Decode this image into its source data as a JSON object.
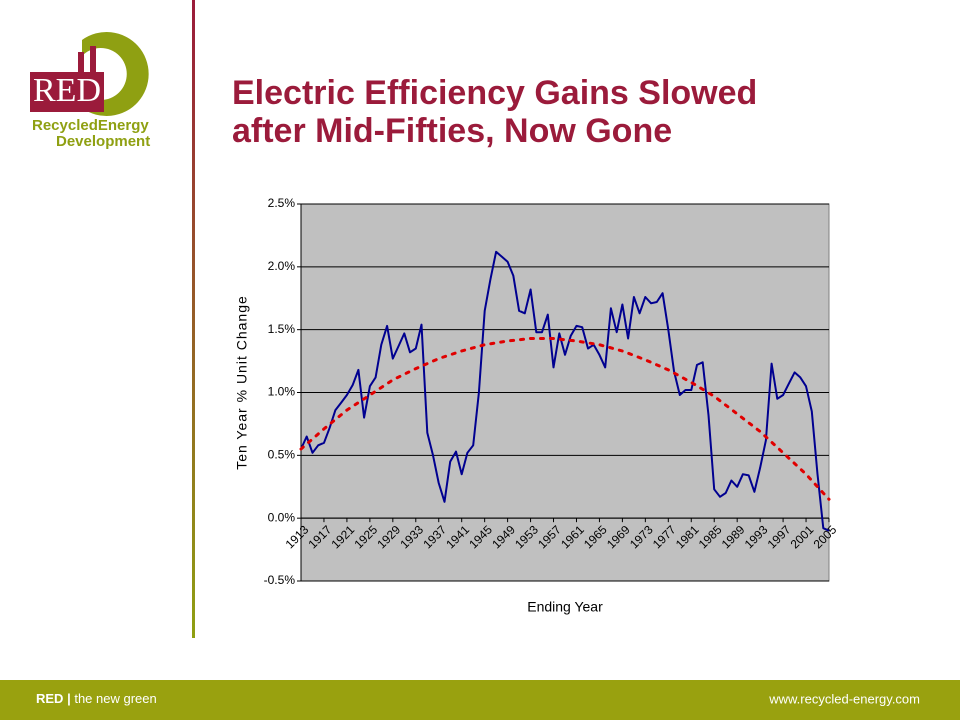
{
  "logo": {
    "mark": "RED",
    "name_line1": "RecycledEnergy",
    "name_line2": "Development"
  },
  "title_lines": [
    "Electric Efficiency Gains Slowed",
    "after Mid-Fifties, Now Gone"
  ],
  "footer": {
    "brand": "RED",
    "separator": "|",
    "tagline": "the new green",
    "url": "www.recycled-energy.com"
  },
  "chart_data": {
    "type": "line",
    "xlabel": "Ending Year",
    "ylabel": "Ten Year % Unit Change",
    "xlim": [
      1913,
      2005
    ],
    "xticks": [
      1913,
      1917,
      1921,
      1925,
      1929,
      1933,
      1937,
      1941,
      1945,
      1949,
      1953,
      1957,
      1961,
      1965,
      1969,
      1973,
      1977,
      1981,
      1985,
      1989,
      1993,
      1997,
      2001,
      2005
    ],
    "ylim": [
      -0.5,
      2.5
    ],
    "yticks": [
      {
        "value": -0.5,
        "label": "-0.5%"
      },
      {
        "value": 0,
        "label": "0.0%"
      },
      {
        "value": 0.5,
        "label": "0.5%"
      },
      {
        "value": 1,
        "label": "1.0%"
      },
      {
        "value": 1.5,
        "label": "1.5%"
      },
      {
        "value": 2,
        "label": "2.0%"
      },
      {
        "value": 2.5,
        "label": "2.5%"
      }
    ],
    "grid": true,
    "plot_background": "#c0c0c0",
    "series": [
      {
        "color": "#000090",
        "style": "solid",
        "x": [
          1913,
          1914,
          1915,
          1916,
          1917,
          1918,
          1919,
          1920,
          1921,
          1922,
          1923,
          1924,
          1925,
          1926,
          1927,
          1928,
          1929,
          1930,
          1931,
          1932,
          1933,
          1934,
          1935,
          1936,
          1937,
          1938,
          1939,
          1940,
          1941,
          1942,
          1943,
          1944,
          1945,
          1946,
          1947,
          1948,
          1949,
          1950,
          1951,
          1952,
          1953,
          1954,
          1955,
          1956,
          1957,
          1958,
          1959,
          1960,
          1961,
          1962,
          1963,
          1964,
          1965,
          1966,
          1967,
          1968,
          1969,
          1970,
          1971,
          1972,
          1973,
          1974,
          1975,
          1976,
          1977,
          1978,
          1979,
          1980,
          1981,
          1982,
          1983,
          1984,
          1985,
          1986,
          1987,
          1988,
          1989,
          1990,
          1991,
          1992,
          1993,
          1994,
          1995,
          1996,
          1997,
          1998,
          1999,
          2000,
          2001,
          2002,
          2003,
          2004,
          2005
        ],
        "values": [
          0.55,
          0.65,
          0.52,
          0.58,
          0.6,
          0.72,
          0.86,
          0.92,
          0.98,
          1.06,
          1.18,
          0.8,
          1.05,
          1.12,
          1.38,
          1.53,
          1.27,
          1.37,
          1.47,
          1.32,
          1.35,
          1.54,
          0.68,
          0.5,
          0.28,
          0.13,
          0.45,
          0.53,
          0.35,
          0.52,
          0.58,
          1.0,
          1.65,
          1.9,
          2.12,
          2.08,
          2.04,
          1.93,
          1.65,
          1.63,
          1.82,
          1.48,
          1.48,
          1.62,
          1.2,
          1.47,
          1.3,
          1.45,
          1.53,
          1.52,
          1.35,
          1.38,
          1.3,
          1.2,
          1.67,
          1.48,
          1.7,
          1.43,
          1.76,
          1.63,
          1.76,
          1.71,
          1.72,
          1.79,
          1.5,
          1.17,
          0.98,
          1.02,
          1.02,
          1.22,
          1.24,
          0.82,
          0.23,
          0.17,
          0.2,
          0.3,
          0.25,
          0.35,
          0.34,
          0.21,
          0.4,
          0.62,
          1.23,
          0.95,
          0.98,
          1.07,
          1.16,
          1.12,
          1.05,
          0.85,
          0.35,
          -0.08,
          -0.1
        ]
      },
      {
        "color": "#e00000",
        "style": "dotted",
        "x": [
          1913,
          1917,
          1921,
          1925,
          1929,
          1933,
          1937,
          1941,
          1945,
          1949,
          1953,
          1957,
          1961,
          1965,
          1969,
          1973,
          1977,
          1981,
          1985,
          1989,
          1993,
          1997,
          2001,
          2005
        ],
        "values": [
          0.55,
          0.71,
          0.86,
          0.98,
          1.1,
          1.19,
          1.27,
          1.33,
          1.38,
          1.41,
          1.43,
          1.43,
          1.41,
          1.38,
          1.33,
          1.26,
          1.18,
          1.08,
          0.97,
          0.83,
          0.69,
          0.52,
          0.35,
          0.15
        ]
      }
    ]
  }
}
